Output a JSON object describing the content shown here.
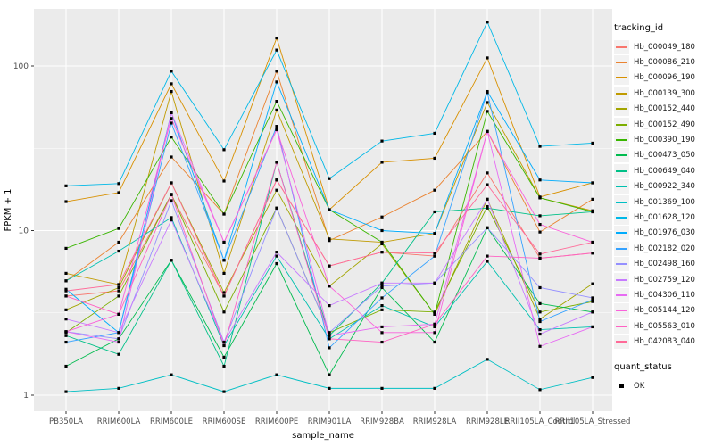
{
  "chart_data": {
    "type": "line",
    "title": "",
    "xlabel": "sample_name",
    "ylabel": "FPKM + 1",
    "y_scale": "log10",
    "y_ticks": [
      1,
      10,
      100
    ],
    "y_minor": [
      3.162,
      31.62
    ],
    "ylim_approx": [
      0.8,
      220
    ],
    "grid": true,
    "categories": [
      "PB350LA",
      "RRIM600LA",
      "RRIM600LE",
      "RRIM600SE",
      "RRIM600PE",
      "RRIM901LA",
      "RRIM928BA",
      "RRIM928LA",
      "RRIM928LE",
      "RRII105LA_Control",
      "RRII105LA_Stressed"
    ],
    "series": [
      {
        "name": "Hb_000049_180",
        "color": "#F8766D",
        "values": [
          4.0,
          4.3,
          16.5,
          4.0,
          20.3,
          6.1,
          7.4,
          7.0,
          22.4,
          6.8,
          7.3
        ]
      },
      {
        "name": "Hb_000086_210",
        "color": "#EA8331",
        "values": [
          4.95,
          8.5,
          28,
          12.6,
          93,
          8.7,
          12.1,
          17.6,
          40,
          9.8,
          15.5
        ]
      },
      {
        "name": "Hb_000096_190",
        "color": "#D89000",
        "values": [
          15,
          17,
          78,
          20,
          148,
          13.4,
          26,
          27.5,
          112,
          16,
          19.5
        ]
      },
      {
        "name": "Hb_000139_300",
        "color": "#C09B00",
        "values": [
          5.5,
          4.7,
          70,
          5.5,
          54,
          8.9,
          8.5,
          9.6,
          60,
          15.8,
          13.2
        ]
      },
      {
        "name": "Hb_000152_440",
        "color": "#A3A500",
        "values": [
          3.3,
          4.5,
          19.5,
          4.2,
          17.6,
          4.6,
          8.3,
          3.1,
          15.5,
          2.9,
          4.75
        ]
      },
      {
        "name": "Hb_000152_490",
        "color": "#7CAE00",
        "values": [
          2.4,
          4.0,
          16.6,
          3.2,
          13.7,
          2.4,
          3.3,
          3.2,
          14,
          3.2,
          3.7
        ]
      },
      {
        "name": "Hb_000390_190",
        "color": "#39B600",
        "values": [
          7.8,
          10.3,
          37,
          12.6,
          61,
          13.4,
          8.5,
          3.1,
          53,
          15.8,
          13
        ]
      },
      {
        "name": "Hb_000473_050",
        "color": "#00BB4E",
        "values": [
          1.5,
          2.2,
          6.6,
          1.7,
          6.3,
          1.33,
          4.5,
          2.1,
          10.4,
          3.6,
          3.2
        ]
      },
      {
        "name": "Hb_000649_040",
        "color": "#00C087",
        "values": [
          2.3,
          1.77,
          6.6,
          1.5,
          26,
          2.3,
          4.8,
          13,
          13.7,
          12.3,
          13
        ]
      },
      {
        "name": "Hb_000922_340",
        "color": "#00C0AF",
        "values": [
          4.95,
          7.5,
          12,
          2.0,
          7.0,
          2.2,
          3.5,
          2.6,
          6.5,
          2.5,
          2.6
        ]
      },
      {
        "name": "Hb_001369_100",
        "color": "#00BFC4",
        "values": [
          1.05,
          1.1,
          1.33,
          1.05,
          1.33,
          1.1,
          1.1,
          1.1,
          1.65,
          1.08,
          1.28
        ]
      },
      {
        "name": "Hb_001628_120",
        "color": "#00B8E7",
        "values": [
          18.7,
          19.3,
          93,
          31,
          125,
          20.7,
          35,
          39,
          185,
          32.5,
          34
        ]
      },
      {
        "name": "Hb_001976_030",
        "color": "#00ACFC",
        "values": [
          4.4,
          2.4,
          52,
          6.6,
          80,
          13.4,
          10,
          9.6,
          70,
          20.3,
          19.5
        ]
      },
      {
        "name": "Hb_002182_020",
        "color": "#35A2FF",
        "values": [
          2.1,
          2.4,
          45,
          6.6,
          43,
          1.94,
          3.9,
          7.0,
          69,
          2.8,
          3.8
        ]
      },
      {
        "name": "Hb_002498_160",
        "color": "#9590FF",
        "values": [
          2.43,
          2.2,
          15.2,
          2.1,
          13.7,
          2.4,
          4.6,
          4.8,
          10.4,
          4.5,
          3.9
        ]
      },
      {
        "name": "Hb_002759_120",
        "color": "#C77CFF",
        "values": [
          2.9,
          2.4,
          11.6,
          2.1,
          7.4,
          3.5,
          4.8,
          4.8,
          15.5,
          2.35,
          3.2
        ]
      },
      {
        "name": "Hb_004306_110",
        "color": "#E76BF3",
        "values": [
          2.43,
          2.1,
          52,
          8.5,
          41,
          2.3,
          2.6,
          2.7,
          40,
          1.98,
          2.6
        ]
      },
      {
        "name": "Hb_005144_120",
        "color": "#FA62DB",
        "values": [
          2.43,
          3.1,
          48,
          8.5,
          41,
          4.6,
          2.4,
          2.4,
          40,
          10.9,
          8.5
        ]
      },
      {
        "name": "Hb_005563_010",
        "color": "#FF61C3",
        "values": [
          4.0,
          3.1,
          16.6,
          2.0,
          26,
          2.2,
          2.1,
          2.7,
          7.0,
          6.8,
          7.3
        ]
      },
      {
        "name": "Hb_042083_040",
        "color": "#FF6A98",
        "values": [
          4.3,
          4.7,
          19.5,
          4.0,
          20.3,
          6.1,
          7.4,
          7.3,
          19,
          7.2,
          8.5
        ]
      }
    ],
    "legend": {
      "title": "tracking_id",
      "position": "right"
    },
    "quant_legend": {
      "title": "quant_status",
      "items": [
        {
          "label": "OK",
          "marker": "black-square"
        }
      ]
    },
    "style": {
      "panel_bg": "#EBEBEB",
      "grid_color": "#FFFFFF",
      "point_color": "#000000",
      "point_shape": "square",
      "axis_text_color": "#4D4D4D",
      "title_color": "#000000",
      "legend_key_bg": "#F2F2F2"
    }
  }
}
